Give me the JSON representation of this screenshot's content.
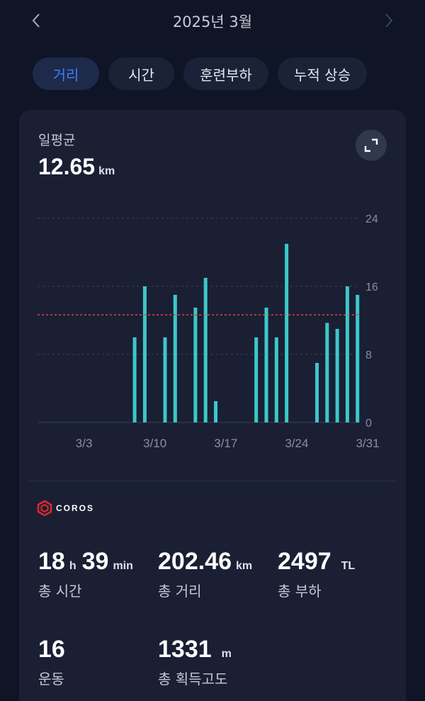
{
  "header": {
    "title": "2025년 3월",
    "prev_icon": "chevron-left-icon",
    "next_icon": "chevron-right-icon"
  },
  "tabs": [
    {
      "label": "거리",
      "active": true
    },
    {
      "label": "시간",
      "active": false
    },
    {
      "label": "훈련부하",
      "active": false
    },
    {
      "label": "누적 상승",
      "active": false
    }
  ],
  "summary": {
    "label": "일평균",
    "value": "12.65",
    "unit": "km",
    "expand_icon": "expand-icon"
  },
  "chart_data": {
    "type": "bar",
    "categories": [
      "3/1",
      "3/2",
      "3/3",
      "3/4",
      "3/5",
      "3/6",
      "3/7",
      "3/8",
      "3/9",
      "3/10",
      "3/11",
      "3/12",
      "3/13",
      "3/14",
      "3/15",
      "3/16",
      "3/17",
      "3/18",
      "3/19",
      "3/20",
      "3/21",
      "3/22",
      "3/23",
      "3/24",
      "3/25",
      "3/26",
      "3/27",
      "3/28",
      "3/29",
      "3/30",
      "3/31"
    ],
    "x_tick_labels": [
      "3/3",
      "3/10",
      "3/17",
      "3/24",
      "3/31"
    ],
    "values": [
      0,
      0,
      0,
      0,
      0,
      0,
      0,
      10,
      16,
      0,
      10,
      15,
      0,
      13.5,
      17,
      2.5,
      0,
      0,
      0,
      10,
      13.5,
      10,
      21,
      0,
      0,
      7,
      11.7,
      11,
      16,
      15,
      0
    ],
    "average": 12.65,
    "y_ticks": [
      0,
      8,
      16,
      24
    ],
    "ylim": [
      0,
      24
    ],
    "average_line": true,
    "colors": {
      "bar": "#3cc8c8",
      "average_line": "#e0443e",
      "grid": "#3a4058",
      "tick_text": "#8a8fa0"
    }
  },
  "brand": {
    "name": "COROS",
    "logo_icon": "coros-logo-icon",
    "color": "#e02a2a"
  },
  "stats": [
    {
      "parts": [
        {
          "value": "18",
          "unit": "h"
        },
        {
          "value": "39",
          "unit": "min"
        }
      ],
      "label": "총 시간"
    },
    {
      "parts": [
        {
          "value": "202.46",
          "unit": "km"
        }
      ],
      "label": "총 거리"
    },
    {
      "parts": [
        {
          "value": "2497",
          "unit": "TL"
        }
      ],
      "label": "총 부하"
    },
    {
      "parts": [
        {
          "value": "16",
          "unit": ""
        }
      ],
      "label": "운동"
    },
    {
      "parts": [
        {
          "value": "1331",
          "unit": "m"
        }
      ],
      "label": "총 획득고도"
    }
  ],
  "colors": {
    "accent": "#3d7dff",
    "background": "#0f1426",
    "card": "#1a1f34"
  }
}
